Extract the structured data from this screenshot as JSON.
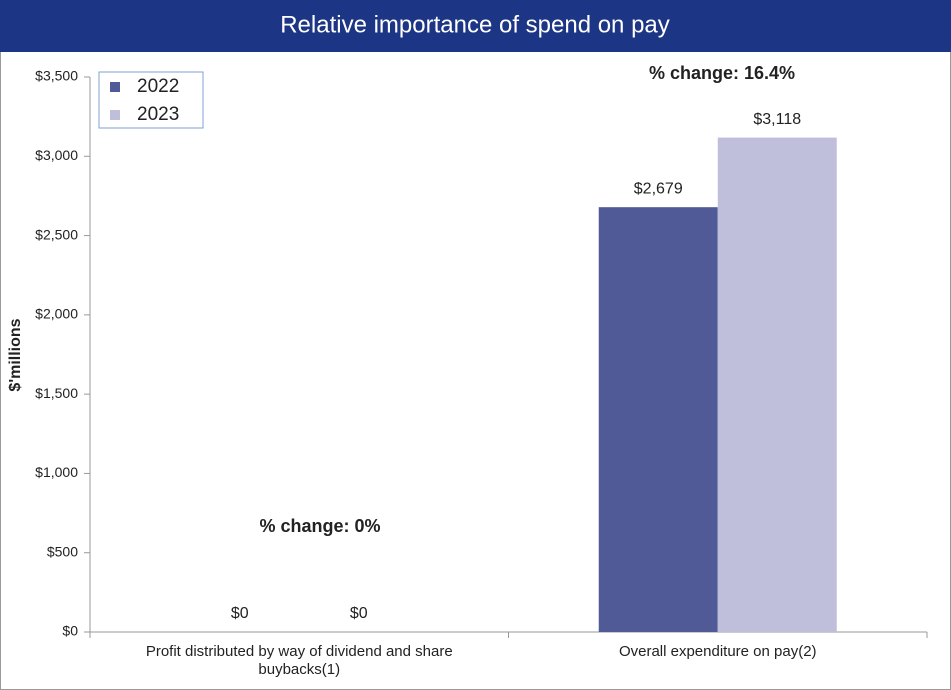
{
  "chart_data": {
    "type": "bar",
    "title": "Relative importance of spend on pay",
    "ylabel": "$'millions",
    "categories": [
      "Profit distributed by way of dividend and share buybacks(1)",
      "Overall expenditure on pay(2)"
    ],
    "series": [
      {
        "name": "2022",
        "color": "#4f5a96",
        "values": [
          0,
          2679
        ],
        "value_labels": [
          "$0",
          "$2,679"
        ]
      },
      {
        "name": "2023",
        "color": "#bfbfdc",
        "values": [
          0,
          3118
        ],
        "value_labels": [
          "$0",
          "$3,118"
        ]
      }
    ],
    "annotations": [
      "% change: 0%",
      "% change: 16.4%"
    ],
    "ylim": [
      0,
      3500
    ],
    "yticks": [
      {
        "value": 0,
        "label": "$0"
      },
      {
        "value": 500,
        "label": "$500"
      },
      {
        "value": 1000,
        "label": "$1,000"
      },
      {
        "value": 1500,
        "label": "$1,500"
      },
      {
        "value": 2000,
        "label": "$2,000"
      },
      {
        "value": 2500,
        "label": "$2,500"
      },
      {
        "value": 3000,
        "label": "$3,000"
      },
      {
        "value": 3500,
        "label": "$3,500"
      }
    ],
    "grid": false,
    "legend": "upper left"
  }
}
